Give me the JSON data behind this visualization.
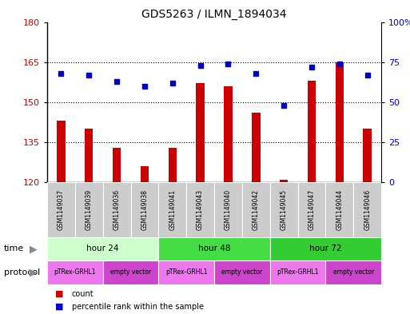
{
  "title": "GDS5263 / ILMN_1894034",
  "samples": [
    "GSM1149037",
    "GSM1149039",
    "GSM1149036",
    "GSM1149038",
    "GSM1149041",
    "GSM1149043",
    "GSM1149040",
    "GSM1149042",
    "GSM1149045",
    "GSM1149047",
    "GSM1149044",
    "GSM1149046"
  ],
  "counts": [
    143,
    140,
    133,
    126,
    133,
    157,
    156,
    146,
    121,
    158,
    165,
    140
  ],
  "percentiles": [
    68,
    67,
    63,
    60,
    62,
    73,
    74,
    68,
    48,
    72,
    74,
    67
  ],
  "ylim_left": [
    120,
    180
  ],
  "ylim_right": [
    0,
    100
  ],
  "yticks_left": [
    120,
    135,
    150,
    165,
    180
  ],
  "yticks_right": [
    0,
    25,
    50,
    75,
    100
  ],
  "ytick_labels_right": [
    "0",
    "25",
    "50",
    "75",
    "100%"
  ],
  "bar_color": "#cc0000",
  "dot_color": "#0000cc",
  "time_groups": [
    {
      "label": "hour 24",
      "start": 0,
      "end": 4,
      "color": "#ccffcc"
    },
    {
      "label": "hour 48",
      "start": 4,
      "end": 8,
      "color": "#44dd44"
    },
    {
      "label": "hour 72",
      "start": 8,
      "end": 12,
      "color": "#33cc33"
    }
  ],
  "protocol_groups": [
    {
      "label": "pTRex-GRHL1",
      "start": 0,
      "end": 2
    },
    {
      "label": "empty vector",
      "start": 2,
      "end": 4
    },
    {
      "label": "pTRex-GRHL1",
      "start": 4,
      "end": 6
    },
    {
      "label": "empty vector",
      "start": 6,
      "end": 8
    },
    {
      "label": "pTRex-GRHL1",
      "start": 8,
      "end": 10
    },
    {
      "label": "empty vector",
      "start": 10,
      "end": 12
    }
  ],
  "proto_color1": "#ee77ee",
  "proto_color2": "#cc44cc",
  "sample_bg": "#cccccc",
  "title_fontsize": 10,
  "bar_width": 0.3,
  "fig_bg": "#ffffff"
}
